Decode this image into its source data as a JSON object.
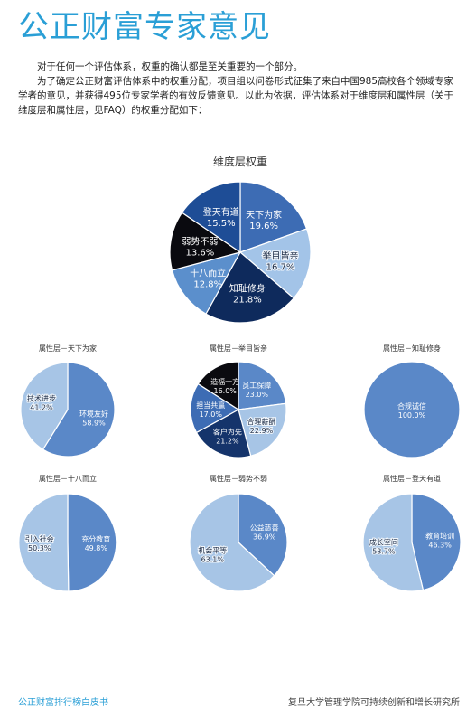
{
  "page": {
    "title": "公正财富专家意见",
    "intro_p1": "对于任何一个评估体系，权重的确认都是至关重要的一个部分。",
    "intro_p2": "为了确定公正财富评估体系中的权重分配，项目组以问卷形式征集了来自中国985高校各个领域专家学者的意见，并获得495位专家学者的有效反馈意见。以此为依据，评估体系对于维度层和属性层（关于维度层和属性层，见FAQ）的权重分配如下：",
    "footer_left": "公正财富排行榜白皮书",
    "footer_right": "复旦大学管理学院可持续创新和增长研究所"
  },
  "chart_data": [
    {
      "type": "pie",
      "title": "维度层权重",
      "slices": [
        {
          "label": "天下为家",
          "value": 19.6,
          "display": "19.6%",
          "color": "#3d6cb4"
        },
        {
          "label": "举目皆亲",
          "value": 16.7,
          "display": "16.7%",
          "color": "#a3c4e8"
        },
        {
          "label": "知耻修身",
          "value": 21.8,
          "display": "21.8%",
          "color": "#0e2a5c"
        },
        {
          "label": "十八而立",
          "value": 12.8,
          "display": "12.8%",
          "color": "#5b8fcc"
        },
        {
          "label": "弱势不弱",
          "value": 13.6,
          "display": "13.6%",
          "color": "#0a0a0f"
        },
        {
          "label": "登天有道",
          "value": 15.5,
          "display": "15.5%",
          "color": "#1e4d96"
        }
      ]
    },
    {
      "type": "pie",
      "title": "属性层－天下为家",
      "slices": [
        {
          "label": "环境友好",
          "value": 58.9,
          "display": "58.9%",
          "color": "#5a88c8"
        },
        {
          "label": "技术进步",
          "value": 41.2,
          "display": "41.2%",
          "color": "#a7c5e6"
        }
      ]
    },
    {
      "type": "pie",
      "title": "属性层－举目皆亲",
      "slices": [
        {
          "label": "员工保障",
          "value": 23.0,
          "display": "23.0%",
          "color": "#5a88c8"
        },
        {
          "label": "合理薪酬",
          "value": 22.9,
          "display": "22.9%",
          "color": "#a7c5e6"
        },
        {
          "label": "客户为先",
          "value": 21.2,
          "display": "21.2%",
          "color": "#15346b"
        },
        {
          "label": "担当共赢",
          "value": 17.0,
          "display": "17.0%",
          "color": "#3d6cb4"
        },
        {
          "label": "造福一方",
          "value": 16.0,
          "display": "16.0%",
          "color": "#0a0a0f"
        }
      ]
    },
    {
      "type": "pie",
      "title": "属性层－知耻修身",
      "slices": [
        {
          "label": "合规诚信",
          "value": 100.0,
          "display": "100.0%",
          "color": "#5a88c8"
        }
      ]
    },
    {
      "type": "pie",
      "title": "属性层－十八而立",
      "slices": [
        {
          "label": "充分教育",
          "value": 49.8,
          "display": "49.8%",
          "color": "#5a88c8"
        },
        {
          "label": "引入社会",
          "value": 50.3,
          "display": "50.3%",
          "color": "#a7c5e6"
        }
      ]
    },
    {
      "type": "pie",
      "title": "属性层－弱势不弱",
      "slices": [
        {
          "label": "公益慈善",
          "value": 36.9,
          "display": "36.9%",
          "color": "#5a88c8"
        },
        {
          "label": "机会平等",
          "value": 63.1,
          "display": "63.1%",
          "color": "#a7c5e6"
        }
      ]
    },
    {
      "type": "pie",
      "title": "属性层－登天有道",
      "slices": [
        {
          "label": "教育培训",
          "value": 46.3,
          "display": "46.3%",
          "color": "#5a88c8"
        },
        {
          "label": "成长空间",
          "value": 53.7,
          "display": "53.7%",
          "color": "#a7c5e6"
        }
      ]
    }
  ]
}
